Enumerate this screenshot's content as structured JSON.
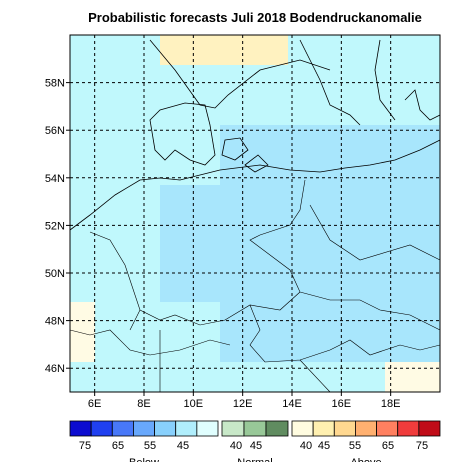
{
  "title": "Probabilistic forecasts Juli 2018 Bodendruckanomalie",
  "map": {
    "xlim": [
      5,
      20
    ],
    "ylim": [
      45,
      60
    ],
    "lon_ticks": [
      {
        "value": 6,
        "label": "6E"
      },
      {
        "value": 8,
        "label": "8E"
      },
      {
        "value": 10,
        "label": "10E"
      },
      {
        "value": 12,
        "label": "12E"
      },
      {
        "value": 14,
        "label": "14E"
      },
      {
        "value": 16,
        "label": "16E"
      },
      {
        "value": 18,
        "label": "18E"
      }
    ],
    "lat_ticks": [
      {
        "value": 46,
        "label": "46N"
      },
      {
        "value": 48,
        "label": "48N"
      },
      {
        "value": 50,
        "label": "50N"
      },
      {
        "value": 52,
        "label": "52N"
      },
      {
        "value": 54,
        "label": "54N"
      },
      {
        "value": 56,
        "label": "56N"
      },
      {
        "value": 58,
        "label": "58N"
      }
    ]
  },
  "legend": [
    {
      "name": "Below",
      "colors": [
        "#0c0cd0",
        "#2040f0",
        "#4878f8",
        "#68a8fc",
        "#88d0fc",
        "#b0eefc",
        "#e0fefe"
      ],
      "labels": [
        75,
        65,
        55,
        45
      ]
    },
    {
      "name": "Normal",
      "colors": [
        "#c8e8c8",
        "#98c898",
        "#608c60"
      ],
      "labels": [
        40,
        45
      ]
    },
    {
      "name": "Above",
      "colors": [
        "#fffce0",
        "#fff0b0",
        "#ffd890",
        "#ffb070",
        "#ff8060",
        "#f03c3c",
        "#c00c18"
      ],
      "labels": [
        40,
        45,
        55,
        65,
        75
      ]
    }
  ]
}
